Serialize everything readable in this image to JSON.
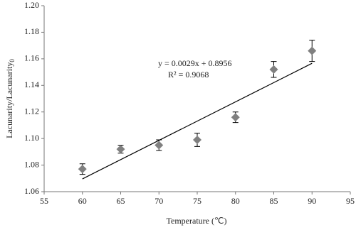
{
  "chart_data": {
    "type": "scatter",
    "x_label": "Temperature (℃)",
    "y_label": "Lacunarity/Lacunarity",
    "y_label_subscript": "0",
    "series": [
      {
        "x": [
          60,
          65,
          70,
          75,
          80,
          85,
          90
        ],
        "values": [
          1.077,
          1.092,
          1.095,
          1.099,
          1.116,
          1.152,
          1.166
        ],
        "errors": [
          0.004,
          0.003,
          0.004,
          0.005,
          0.004,
          0.006,
          0.008
        ],
        "color": "#808080"
      }
    ],
    "trendline": {
      "x": [
        60,
        90
      ],
      "values": [
        1.0696,
        1.1566
      ],
      "color": "#000000"
    },
    "annotations": [
      "y = 0.0029x + 0.8956",
      "R² = 0.9068"
    ],
    "xlim": [
      55,
      95
    ],
    "xticks": [
      55,
      60,
      65,
      70,
      75,
      80,
      85,
      90,
      95
    ],
    "ylim": [
      1.06,
      1.2
    ],
    "yticks": [
      {
        "value": 1.06,
        "label": "1.06"
      },
      {
        "value": 1.08,
        "label": "1.08"
      },
      {
        "value": 1.1,
        "label": "1.10"
      },
      {
        "value": 1.12,
        "label": "1.12"
      },
      {
        "value": 1.14,
        "label": "1.14"
      },
      {
        "value": 1.16,
        "label": "1.16"
      },
      {
        "value": 1.18,
        "label": "1.18"
      },
      {
        "value": 1.2,
        "label": "1.20"
      }
    ],
    "grid": false
  }
}
